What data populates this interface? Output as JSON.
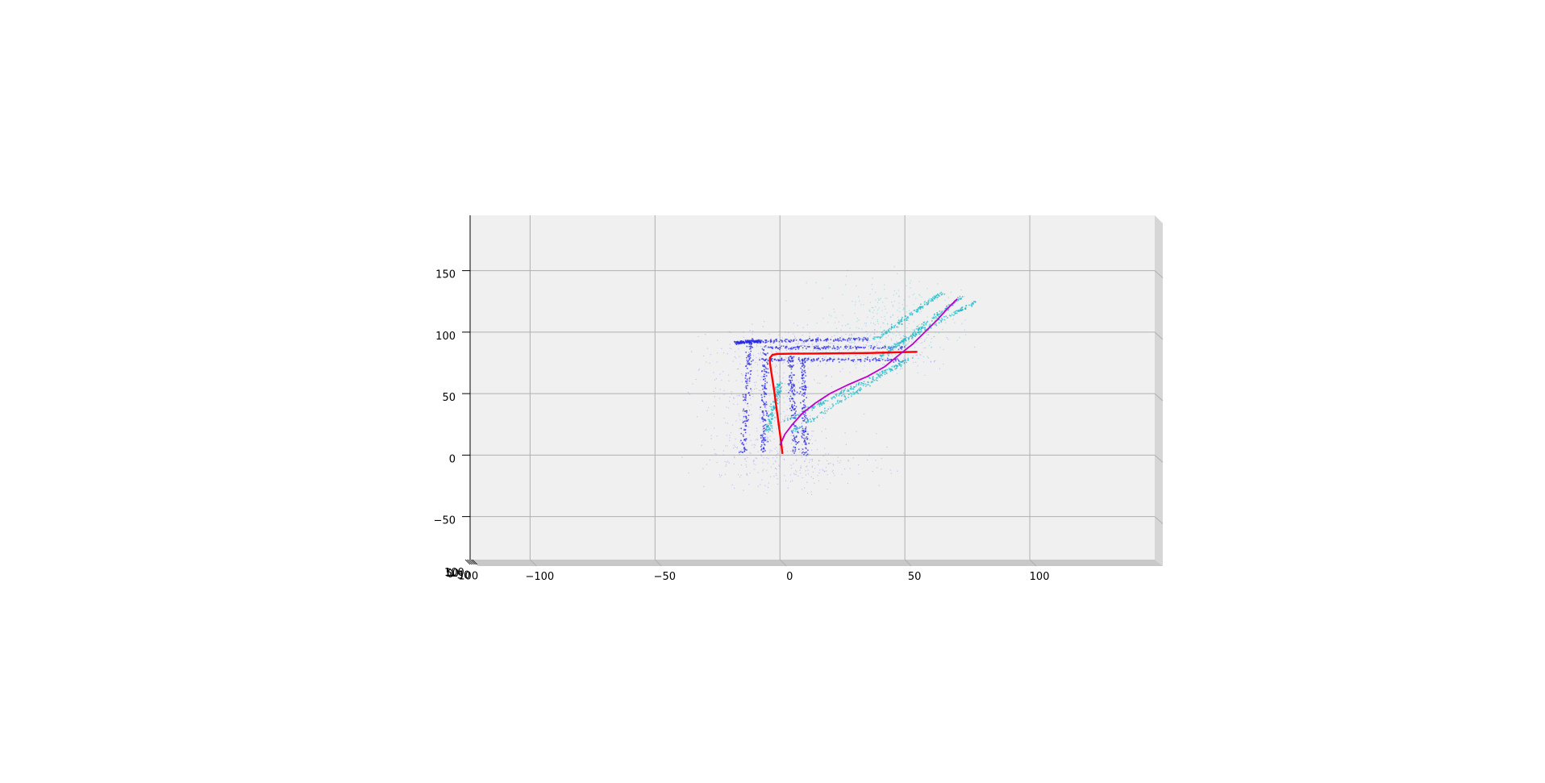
{
  "chart_data": {
    "type": "scatter",
    "title": "",
    "xlabel": "",
    "ylabel": "",
    "xlim": [
      -124,
      150
    ],
    "ylim": [
      -85,
      195
    ],
    "x_ticks": [
      -100,
      -50,
      0,
      50,
      100
    ],
    "x_tick_labels": [
      "−100",
      "−50",
      "0",
      "50",
      "100"
    ],
    "y_ticks": [
      -50,
      0,
      50,
      100,
      150
    ],
    "y_tick_labels": [
      "−50",
      "0",
      "50",
      "100",
      "150"
    ],
    "z_tick_labels": [
      "100",
      "50",
      "0",
      "−50",
      "−100"
    ],
    "grid": true,
    "legend": "none",
    "colors": {
      "pane": "#f0f0f0",
      "pane_side": "#d6d6d6",
      "pane_floor": "#c8c8c8",
      "grid": "#b0b0b0",
      "points_blue": "#2a2ae6",
      "points_light_blue": "#6f6ff0",
      "points_cyan": "#22bcc8",
      "trajectory_red": "#ff0000",
      "trajectory_magenta": "#c000c8"
    },
    "series": [
      {
        "color": "#ff0000",
        "kind": "trajectory",
        "points": [
          [
            1,
            1
          ],
          [
            0.5,
            10
          ],
          [
            -0.5,
            25
          ],
          [
            -1.5,
            40
          ],
          [
            -2.5,
            55
          ],
          [
            -3.5,
            68
          ],
          [
            -4,
            75
          ],
          [
            -4,
            79
          ],
          [
            -3,
            81.5
          ],
          [
            -1,
            82.3
          ],
          [
            5,
            82.5
          ],
          [
            15,
            82.6
          ],
          [
            25,
            82.8
          ],
          [
            35,
            83
          ],
          [
            45,
            83.5
          ],
          [
            55,
            84
          ]
        ]
      },
      {
        "color": "#c000c8",
        "kind": "trajectory",
        "points": [
          [
            0,
            8
          ],
          [
            2,
            17
          ],
          [
            5,
            25
          ],
          [
            9,
            34
          ],
          [
            14,
            42
          ],
          [
            20,
            50
          ],
          [
            27,
            57
          ],
          [
            35,
            64
          ],
          [
            42,
            72
          ],
          [
            48,
            82
          ],
          [
            53,
            90
          ],
          [
            58,
            100
          ],
          [
            63,
            110
          ],
          [
            67,
            119
          ],
          [
            71,
            127
          ]
        ]
      },
      {
        "color": "#2a2ae6",
        "kind": "point_cloud",
        "structures": [
          {
            "from": [
              -15,
              2
            ],
            "to": [
              -12,
              95
            ]
          },
          {
            "from": [
              -7,
              2
            ],
            "to": [
              -6,
              87
            ]
          },
          {
            "from": [
              6,
              2
            ],
            "to": [
              4,
              83
            ]
          },
          {
            "from": [
              10,
              0
            ],
            "to": [
              9,
              80
            ]
          },
          {
            "from": [
              -8,
              78
            ],
            "to": [
              48,
              78
            ]
          },
          {
            "from": [
              -6,
              88
            ],
            "to": [
              50,
              88
            ]
          },
          {
            "from": [
              -10,
              93
            ],
            "to": [
              35,
              95
            ]
          },
          {
            "from": [
              -18,
              92
            ],
            "to": [
              -8,
              93
            ]
          }
        ]
      },
      {
        "color": "#22bcc8",
        "kind": "point_cloud",
        "structures": [
          {
            "from": [
              2,
              28
            ],
            "to": [
              48,
              75
            ]
          },
          {
            "from": [
              5,
              20
            ],
            "to": [
              52,
              80
            ]
          },
          {
            "from": [
              40,
              80
            ],
            "to": [
              73,
              130
            ]
          },
          {
            "from": [
              44,
              88
            ],
            "to": [
              78,
              125
            ]
          },
          {
            "from": [
              38,
              95
            ],
            "to": [
              65,
              133
            ]
          },
          {
            "from": [
              -5,
              20
            ],
            "to": [
              0,
              60
            ]
          }
        ]
      }
    ]
  }
}
